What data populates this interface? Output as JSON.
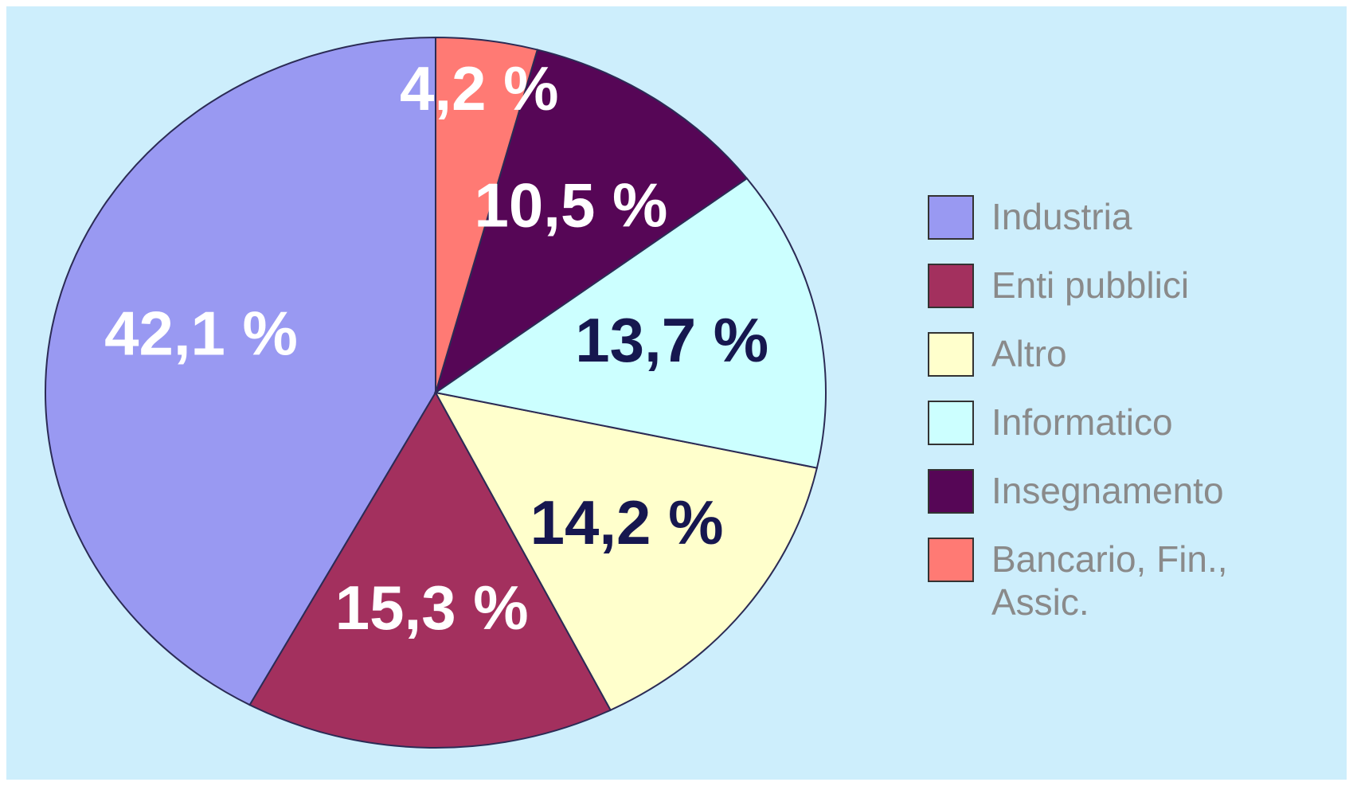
{
  "chart_data": {
    "type": "pie",
    "categories": [
      "Industria",
      "Enti pubblici",
      "Altro",
      "Informatico",
      "Insegnamento",
      "Bancario, Fin., Assic."
    ],
    "values": [
      42.1,
      15.3,
      14.2,
      13.7,
      10.5,
      4.2
    ],
    "value_labels": [
      "42,1 %",
      "15,3 %",
      "14,2 %",
      "13,7 %",
      "10,5 %",
      "4,2 %"
    ],
    "colors": [
      "#9999f2",
      "#a3305e",
      "#ffffcc",
      "#ccffff",
      "#560656",
      "#ff7a74"
    ],
    "label_colors": [
      "#ffffff",
      "#ffffff",
      "#16174f",
      "#16174f",
      "#ffffff",
      "#ffffff"
    ],
    "start": "top",
    "direction": "counterclockwise",
    "legend": "right"
  }
}
